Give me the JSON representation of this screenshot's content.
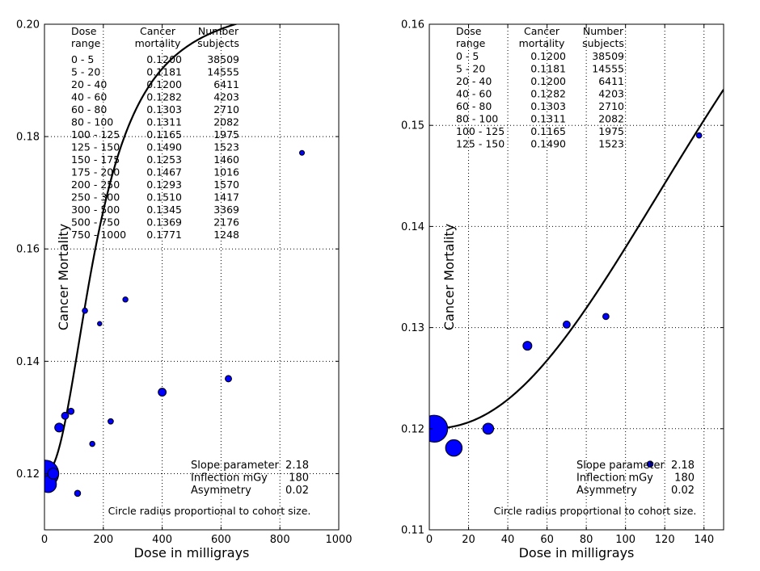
{
  "chart_data": [
    {
      "type": "scatter",
      "xlabel": "Dose in milligrays",
      "ylabel": "Cancer Mortality",
      "xlim": [
        0,
        1000
      ],
      "ylim": [
        0.11,
        0.2
      ],
      "xticks": [
        0,
        200,
        400,
        600,
        800,
        1000
      ],
      "yticks": [
        0.12,
        0.14,
        0.16,
        0.18,
        0.2
      ],
      "xtick_labels": [
        "0",
        "200",
        "400",
        "600",
        "800",
        "1000"
      ],
      "ytick_labels": [
        "0.12",
        "0.14",
        "0.16",
        "0.18",
        "0.20"
      ],
      "grid": true,
      "table_headers": [
        [
          "Dose",
          "range"
        ],
        [
          "Cancer",
          "mortality"
        ],
        [
          "Number",
          "subjects"
        ]
      ],
      "table_rows": [
        [
          "0 - 5",
          "0.1200",
          "38509"
        ],
        [
          "5 - 20",
          "0.1181",
          "14555"
        ],
        [
          "20 - 40",
          "0.1200",
          "6411"
        ],
        [
          "40 - 60",
          "0.1282",
          "4203"
        ],
        [
          "60 - 80",
          "0.1303",
          "2710"
        ],
        [
          "80 - 100",
          "0.1311",
          "2082"
        ],
        [
          "100 - 125",
          "0.1165",
          "1975"
        ],
        [
          "125 - 150",
          "0.1490",
          "1523"
        ],
        [
          "150 - 175",
          "0.1253",
          "1460"
        ],
        [
          "175 - 200",
          "0.1467",
          "1016"
        ],
        [
          "200 - 250",
          "0.1293",
          "1570"
        ],
        [
          "250 - 300",
          "0.1510",
          "1417"
        ],
        [
          "300 - 500",
          "0.1345",
          "3369"
        ],
        [
          "500 - 750",
          "0.1369",
          "2176"
        ],
        [
          "750 - 1000",
          "0.1771",
          "1248"
        ]
      ],
      "points": [
        {
          "x": 2.5,
          "y": 0.12,
          "n": 38509
        },
        {
          "x": 12.5,
          "y": 0.1181,
          "n": 14555
        },
        {
          "x": 30,
          "y": 0.12,
          "n": 6411
        },
        {
          "x": 50,
          "y": 0.1282,
          "n": 4203
        },
        {
          "x": 70,
          "y": 0.1303,
          "n": 2710
        },
        {
          "x": 90,
          "y": 0.1311,
          "n": 2082
        },
        {
          "x": 112.5,
          "y": 0.1165,
          "n": 1975
        },
        {
          "x": 137.5,
          "y": 0.149,
          "n": 1523
        },
        {
          "x": 162.5,
          "y": 0.1253,
          "n": 1460
        },
        {
          "x": 187.5,
          "y": 0.1467,
          "n": 1016
        },
        {
          "x": 225,
          "y": 0.1293,
          "n": 1570
        },
        {
          "x": 275,
          "y": 0.151,
          "n": 1417
        },
        {
          "x": 400,
          "y": 0.1345,
          "n": 3369
        },
        {
          "x": 625,
          "y": 0.1369,
          "n": 2176
        },
        {
          "x": 875,
          "y": 0.1771,
          "n": 1248
        }
      ],
      "annotation_labels": [
        "Slope parameter",
        "Inflection mGy",
        "Asymmetry"
      ],
      "annotation_values": [
        "2.18",
        "180",
        "0.02"
      ],
      "fit": {
        "slope": 2.18,
        "inflection": 180,
        "asymmetry": 0.02
      },
      "note": "Circle radius proportional to cohort size."
    },
    {
      "type": "scatter",
      "xlabel": "Dose in milligrays",
      "ylabel": "Cancer Mortality",
      "xlim": [
        0,
        150
      ],
      "ylim": [
        0.11,
        0.16
      ],
      "xticks": [
        0,
        20,
        40,
        60,
        80,
        100,
        120,
        140
      ],
      "yticks": [
        0.11,
        0.12,
        0.13,
        0.14,
        0.15,
        0.16
      ],
      "xtick_labels": [
        "0",
        "20",
        "40",
        "60",
        "80",
        "100",
        "120",
        "140"
      ],
      "ytick_labels": [
        "0.11",
        "0.12",
        "0.13",
        "0.14",
        "0.15",
        "0.16"
      ],
      "grid": true,
      "table_headers": [
        [
          "Dose",
          "range"
        ],
        [
          "Cancer",
          "mortality"
        ],
        [
          "Number",
          "subjects"
        ]
      ],
      "table_rows": [
        [
          "0 - 5",
          "0.1200",
          "38509"
        ],
        [
          "5 - 20",
          "0.1181",
          "14555"
        ],
        [
          "20 - 40",
          "0.1200",
          "6411"
        ],
        [
          "40 - 60",
          "0.1282",
          "4203"
        ],
        [
          "60 - 80",
          "0.1303",
          "2710"
        ],
        [
          "80 - 100",
          "0.1311",
          "2082"
        ],
        [
          "100 - 125",
          "0.1165",
          "1975"
        ],
        [
          "125 - 150",
          "0.1490",
          "1523"
        ]
      ],
      "points": [
        {
          "x": 2.5,
          "y": 0.12,
          "n": 38509
        },
        {
          "x": 12.5,
          "y": 0.1181,
          "n": 14555
        },
        {
          "x": 30,
          "y": 0.12,
          "n": 6411
        },
        {
          "x": 50,
          "y": 0.1282,
          "n": 4203
        },
        {
          "x": 70,
          "y": 0.1303,
          "n": 2710
        },
        {
          "x": 90,
          "y": 0.1311,
          "n": 2082
        },
        {
          "x": 112.5,
          "y": 0.1165,
          "n": 1975
        },
        {
          "x": 137.5,
          "y": 0.149,
          "n": 1523
        }
      ],
      "annotation_labels": [
        "Slope parameter",
        "Inflection mGy",
        "Asymmetry"
      ],
      "annotation_values": [
        "2.18",
        "180",
        "0.02"
      ],
      "fit": {
        "slope": 2.18,
        "inflection": 180,
        "asymmetry": 0.02
      },
      "note": "Circle radius proportional to cohort size."
    }
  ],
  "colors": {
    "marker_fill": "#0000ff",
    "marker_edge": "#000000",
    "fit_line": "#000000",
    "grid": "#000000"
  }
}
